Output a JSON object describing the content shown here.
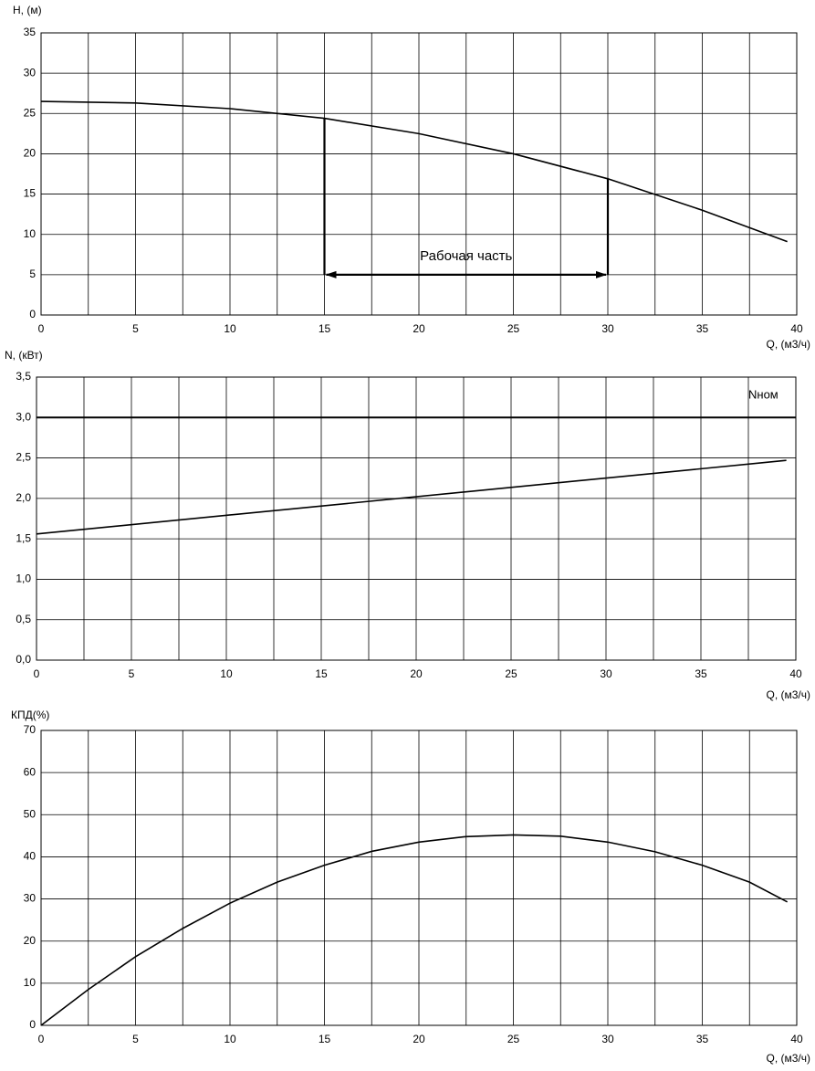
{
  "chart_data": [
    {
      "type": "line",
      "ylabel": "H, (м)",
      "xlabel": "Q, (м3/ч)",
      "x": [
        0,
        5,
        10,
        15,
        20,
        25,
        30,
        35,
        39.5
      ],
      "series": [
        {
          "color": "#000000",
          "values": [
            26.5,
            26.3,
            25.6,
            24.4,
            22.5,
            20,
            16.9,
            13,
            9.1
          ]
        }
      ],
      "xlim": [
        0,
        40
      ],
      "xticks": [
        0,
        5,
        10,
        15,
        20,
        25,
        30,
        35,
        40
      ],
      "x_minor_grid": [
        2.5,
        7.5,
        12.5,
        17.5,
        22.5,
        27.5,
        32.5,
        37.5
      ],
      "ylim": [
        0,
        35
      ],
      "yticks": [
        0,
        5,
        10,
        15,
        20,
        25,
        30,
        35
      ],
      "grid": true,
      "annotation": {
        "text": "Рабочая часть",
        "x_range": [
          15,
          30
        ],
        "y": 5
      }
    },
    {
      "type": "line",
      "ylabel": "N, (кВт)",
      "xlabel": "Q, (м3/ч)",
      "x": [
        0,
        39.5
      ],
      "series": [
        {
          "color": "#000000",
          "values": [
            1.56,
            2.47
          ]
        }
      ],
      "xlim": [
        0,
        40
      ],
      "xticks": [
        0,
        5,
        10,
        15,
        20,
        25,
        30,
        35,
        40
      ],
      "x_minor_grid": [
        2.5,
        7.5,
        12.5,
        17.5,
        22.5,
        27.5,
        32.5,
        37.5
      ],
      "ylim": [
        0,
        3.5
      ],
      "yticks": [
        {
          "value": 0,
          "label": "0,0"
        },
        {
          "value": 0.5,
          "label": "0,5"
        },
        {
          "value": 1,
          "label": "1,0"
        },
        {
          "value": 1.5,
          "label": "1,5"
        },
        {
          "value": 2,
          "label": "2,0"
        },
        {
          "value": 2.5,
          "label": "2,5"
        },
        {
          "value": 3,
          "label": "3,0"
        },
        {
          "value": 3.5,
          "label": "3,5"
        }
      ],
      "grid": true,
      "reference_line": {
        "label": "Nном",
        "value": 3.0
      }
    },
    {
      "type": "line",
      "ylabel": "КПД(%)",
      "xlabel": "Q, (м3/ч)",
      "x": [
        0,
        2.5,
        5,
        7.5,
        10,
        12.5,
        15,
        17.5,
        20,
        22.5,
        25,
        27.5,
        30,
        32.5,
        35,
        37.5,
        39.5
      ],
      "series": [
        {
          "color": "#000000",
          "values": [
            0,
            8.5,
            16.3,
            23,
            29,
            34,
            38,
            41.3,
            43.5,
            44.8,
            45.2,
            44.9,
            43.5,
            41.2,
            38,
            34,
            29.3
          ]
        }
      ],
      "xlim": [
        0,
        40
      ],
      "xticks": [
        0,
        5,
        10,
        15,
        20,
        25,
        30,
        35,
        40
      ],
      "x_minor_grid": [
        2.5,
        7.5,
        12.5,
        17.5,
        22.5,
        27.5,
        32.5,
        37.5
      ],
      "ylim": [
        0,
        70
      ],
      "yticks": [
        0,
        10,
        20,
        30,
        40,
        50,
        60,
        70
      ],
      "grid": true
    }
  ]
}
